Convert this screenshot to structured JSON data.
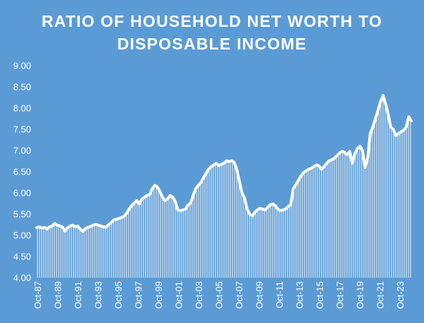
{
  "chart_data": {
    "type": "line",
    "title": "RATIO OF HOUSEHOLD NET WORTH TO DISPOSABLE INCOME",
    "title_lines": [
      "RATIO OF HOUSEHOLD NET WORTH TO",
      "DISPOSABLE INCOME"
    ],
    "xlabel": "",
    "ylabel": "",
    "ylim": [
      4.0,
      9.0
    ],
    "y_ticks": [
      "9.00",
      "8.50",
      "8.00",
      "7.50",
      "7.00",
      "6.50",
      "6.00",
      "5.50",
      "5.00",
      "4.50",
      "4.00"
    ],
    "x_ticks": [
      "Oct-87",
      "Oct-89",
      "Oct-91",
      "Oct-93",
      "Oct-95",
      "Oct-97",
      "Oct-99",
      "Oct-01",
      "Oct-03",
      "Oct-05",
      "Oct-07",
      "Oct-09",
      "Oct-11",
      "Oct-13",
      "Oct-15",
      "Oct-17",
      "Oct-19",
      "Oct-21",
      "Oct-23"
    ],
    "grid": false,
    "legend": "none",
    "style": {
      "background": "#5b9bd5",
      "line_color": "#ffffff",
      "fill_pattern": "vertical white hatch lines under the curve"
    },
    "series": [
      {
        "x": [
          "1987-10-01",
          "1988-01-01",
          "1988-04-01",
          "1988-07-01",
          "1988-10-01",
          "1989-01-01",
          "1989-04-01",
          "1989-07-01",
          "1989-10-01",
          "1990-01-01",
          "1990-04-01",
          "1990-07-01",
          "1990-10-01",
          "1991-01-01",
          "1991-04-01",
          "1991-07-01",
          "1991-10-01",
          "1992-01-01",
          "1992-04-01",
          "1992-07-01",
          "1992-10-01",
          "1993-01-01",
          "1993-04-01",
          "1993-07-01",
          "1993-10-01",
          "1994-01-01",
          "1994-04-01",
          "1994-07-01",
          "1994-10-01",
          "1995-01-01",
          "1995-04-01",
          "1995-07-01",
          "1995-10-01",
          "1996-01-01",
          "1996-04-01",
          "1996-07-01",
          "1996-10-01",
          "1997-01-01",
          "1997-04-01",
          "1997-07-01",
          "1997-10-01",
          "1998-01-01",
          "1998-04-01",
          "1998-07-01",
          "1998-10-01",
          "1999-01-01",
          "1999-04-01",
          "1999-07-01",
          "1999-10-01",
          "2000-01-01",
          "2000-04-01",
          "2000-07-01",
          "2000-10-01",
          "2001-01-01",
          "2001-04-01",
          "2001-07-01",
          "2001-10-01",
          "2002-01-01",
          "2002-04-01",
          "2002-07-01",
          "2002-10-01",
          "2003-01-01",
          "2003-04-01",
          "2003-07-01",
          "2003-10-01",
          "2004-01-01",
          "2004-04-01",
          "2004-07-01",
          "2004-10-01",
          "2005-01-01",
          "2005-04-01",
          "2005-07-01",
          "2005-10-01",
          "2006-01-01",
          "2006-04-01",
          "2006-07-01",
          "2006-10-01",
          "2007-01-01",
          "2007-04-01",
          "2007-07-01",
          "2007-10-01",
          "2008-01-01",
          "2008-04-01",
          "2008-07-01",
          "2008-10-01",
          "2009-01-01",
          "2009-04-01",
          "2009-07-01",
          "2009-10-01",
          "2010-01-01",
          "2010-04-01",
          "2010-07-01",
          "2010-10-01",
          "2011-01-01",
          "2011-04-01",
          "2011-07-01",
          "2011-10-01",
          "2012-01-01",
          "2012-04-01",
          "2012-07-01",
          "2012-10-01",
          "2013-01-01",
          "2013-04-01",
          "2013-07-01",
          "2013-10-01",
          "2014-01-01",
          "2014-04-01",
          "2014-07-01",
          "2014-10-01",
          "2015-01-01",
          "2015-04-01",
          "2015-07-01",
          "2015-10-01",
          "2016-01-01",
          "2016-04-01",
          "2016-07-01",
          "2016-10-01",
          "2017-01-01",
          "2017-04-01",
          "2017-07-01",
          "2017-10-01",
          "2018-01-01",
          "2018-04-01",
          "2018-07-01",
          "2018-10-01",
          "2019-01-01",
          "2019-04-01",
          "2019-07-01",
          "2019-10-01",
          "2020-01-01",
          "2020-04-01",
          "2020-07-01",
          "2020-10-01",
          "2021-01-01",
          "2021-04-01",
          "2021-07-01",
          "2021-10-01",
          "2022-01-01",
          "2022-04-01",
          "2022-07-01",
          "2022-10-01",
          "2023-01-01",
          "2023-04-01",
          "2023-07-01",
          "2023-10-01",
          "2024-01-01",
          "2024-04-01"
        ],
        "values": [
          5.18,
          5.2,
          5.17,
          5.19,
          5.15,
          5.2,
          5.22,
          5.28,
          5.24,
          5.22,
          5.2,
          5.1,
          5.18,
          5.22,
          5.24,
          5.2,
          5.22,
          5.14,
          5.1,
          5.16,
          5.19,
          5.21,
          5.24,
          5.26,
          5.24,
          5.22,
          5.2,
          5.19,
          5.25,
          5.3,
          5.36,
          5.38,
          5.4,
          5.42,
          5.45,
          5.52,
          5.62,
          5.7,
          5.76,
          5.82,
          5.74,
          5.86,
          5.9,
          5.94,
          5.96,
          6.1,
          6.18,
          6.14,
          6.04,
          5.9,
          5.82,
          5.86,
          5.94,
          5.9,
          5.8,
          5.6,
          5.58,
          5.6,
          5.62,
          5.72,
          5.76,
          5.95,
          6.1,
          6.18,
          6.25,
          6.36,
          6.46,
          6.56,
          6.62,
          6.66,
          6.7,
          6.64,
          6.68,
          6.7,
          6.76,
          6.74,
          6.76,
          6.72,
          6.55,
          6.28,
          6.0,
          5.88,
          5.62,
          5.5,
          5.46,
          5.54,
          5.6,
          5.64,
          5.62,
          5.6,
          5.66,
          5.72,
          5.74,
          5.7,
          5.62,
          5.58,
          5.6,
          5.62,
          5.68,
          5.72,
          6.1,
          6.2,
          6.3,
          6.4,
          6.48,
          6.52,
          6.56,
          6.58,
          6.62,
          6.66,
          6.64,
          6.56,
          6.62,
          6.7,
          6.76,
          6.78,
          6.82,
          6.88,
          6.94,
          6.98,
          6.96,
          6.9,
          6.98,
          6.7,
          6.92,
          7.05,
          7.1,
          7.0,
          6.6,
          6.82,
          7.4,
          7.55,
          7.75,
          7.95,
          8.15,
          8.3,
          8.1,
          7.85,
          7.55,
          7.5,
          7.35,
          7.4,
          7.44,
          7.48,
          7.55,
          7.8,
          7.7
        ]
      }
    ]
  }
}
